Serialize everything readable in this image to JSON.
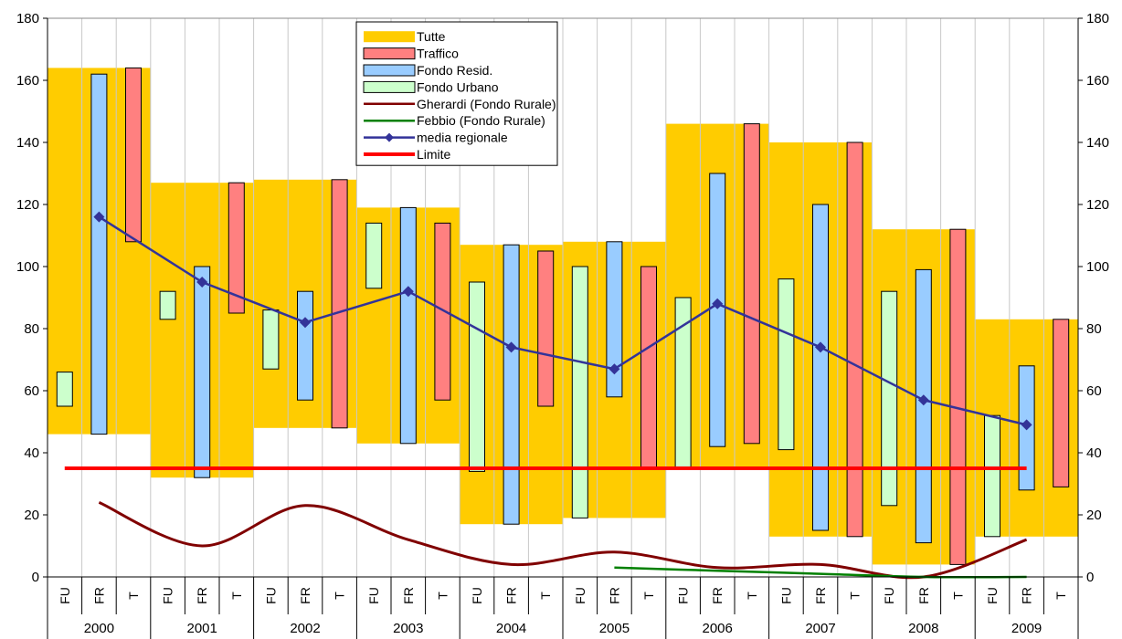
{
  "chart_data": {
    "type": "floating-bar-with-lines",
    "ylim": [
      0,
      180
    ],
    "yticks": [
      0,
      20,
      40,
      60,
      80,
      100,
      120,
      140,
      160,
      180
    ],
    "y_axes": "left-and-right",
    "grid": "vertical-only",
    "legend_position": "top-center",
    "years": [
      "2000",
      "2001",
      "2002",
      "2003",
      "2004",
      "2005",
      "2006",
      "2007",
      "2008",
      "2009"
    ],
    "subcategories": [
      "FU",
      "FR",
      "T"
    ],
    "colors": {
      "tutte": "#FFCC00",
      "traffico": "#FF8080",
      "fondo_resid": "#99CCFF",
      "fondo_urbano": "#CCFFCC",
      "gherardi": "#800000",
      "febbio": "#008000",
      "media": "#333399",
      "limite": "#FF0000"
    },
    "legend": [
      {
        "key": "tutte",
        "label": "Tutte",
        "kind": "fill"
      },
      {
        "key": "traffico",
        "label": "Traffico",
        "kind": "box"
      },
      {
        "key": "fondo_resid",
        "label": "Fondo Resid.",
        "kind": "box"
      },
      {
        "key": "fondo_urbano",
        "label": "Fondo Urbano",
        "kind": "box"
      },
      {
        "key": "gherardi",
        "label": "Gherardi (Fondo Rurale)",
        "kind": "line"
      },
      {
        "key": "febbio",
        "label": "Febbio (Fondo Rurale)",
        "kind": "line"
      },
      {
        "key": "media",
        "label": "media regionale",
        "kind": "marker-line"
      },
      {
        "key": "limite",
        "label": "Limite",
        "kind": "thick-line"
      }
    ],
    "series": [
      {
        "name": "Tutte",
        "key": "tutte",
        "ranges": [
          [
            46,
            164
          ],
          [
            32,
            127
          ],
          [
            48,
            128
          ],
          [
            43,
            119
          ],
          [
            17,
            107
          ],
          [
            19,
            108
          ],
          [
            35,
            146
          ],
          [
            13,
            140
          ],
          [
            4,
            112
          ],
          [
            13,
            83
          ]
        ]
      },
      {
        "name": "Fondo Urbano",
        "key": "fondo_urbano",
        "sub": "FU",
        "ranges": [
          [
            55,
            66
          ],
          [
            83,
            92
          ],
          [
            67,
            86
          ],
          [
            93,
            114
          ],
          [
            34,
            95
          ],
          [
            19,
            100
          ],
          [
            35,
            90
          ],
          [
            41,
            96
          ],
          [
            23,
            92
          ],
          [
            13,
            52
          ]
        ]
      },
      {
        "name": "Fondo Resid.",
        "key": "fondo_resid",
        "sub": "FR",
        "ranges": [
          [
            46,
            162
          ],
          [
            32,
            100
          ],
          [
            57,
            92
          ],
          [
            43,
            119
          ],
          [
            17,
            107
          ],
          [
            58,
            108
          ],
          [
            42,
            130
          ],
          [
            15,
            120
          ],
          [
            11,
            99
          ],
          [
            28,
            68
          ]
        ]
      },
      {
        "name": "Traffico",
        "key": "traffico",
        "sub": "T",
        "ranges": [
          [
            108,
            164
          ],
          [
            85,
            127
          ],
          [
            48,
            128
          ],
          [
            57,
            114
          ],
          [
            55,
            105
          ],
          [
            35,
            100
          ],
          [
            43,
            146
          ],
          [
            13,
            140
          ],
          [
            4,
            112
          ],
          [
            29,
            83
          ]
        ]
      },
      {
        "name": "media regionale",
        "key": "media",
        "values": [
          116,
          95,
          82,
          92,
          74,
          67,
          88,
          74,
          57,
          49
        ]
      },
      {
        "name": "Gherardi (Fondo Rurale)",
        "key": "gherardi",
        "values": [
          24,
          10,
          23,
          12,
          4,
          8,
          3,
          4,
          0,
          12
        ]
      },
      {
        "name": "Febbio (Fondo Rurale)",
        "key": "febbio",
        "values": [
          null,
          null,
          null,
          null,
          null,
          3,
          2,
          1,
          0,
          0
        ]
      },
      {
        "name": "Limite",
        "key": "limite",
        "value": 35
      }
    ]
  }
}
